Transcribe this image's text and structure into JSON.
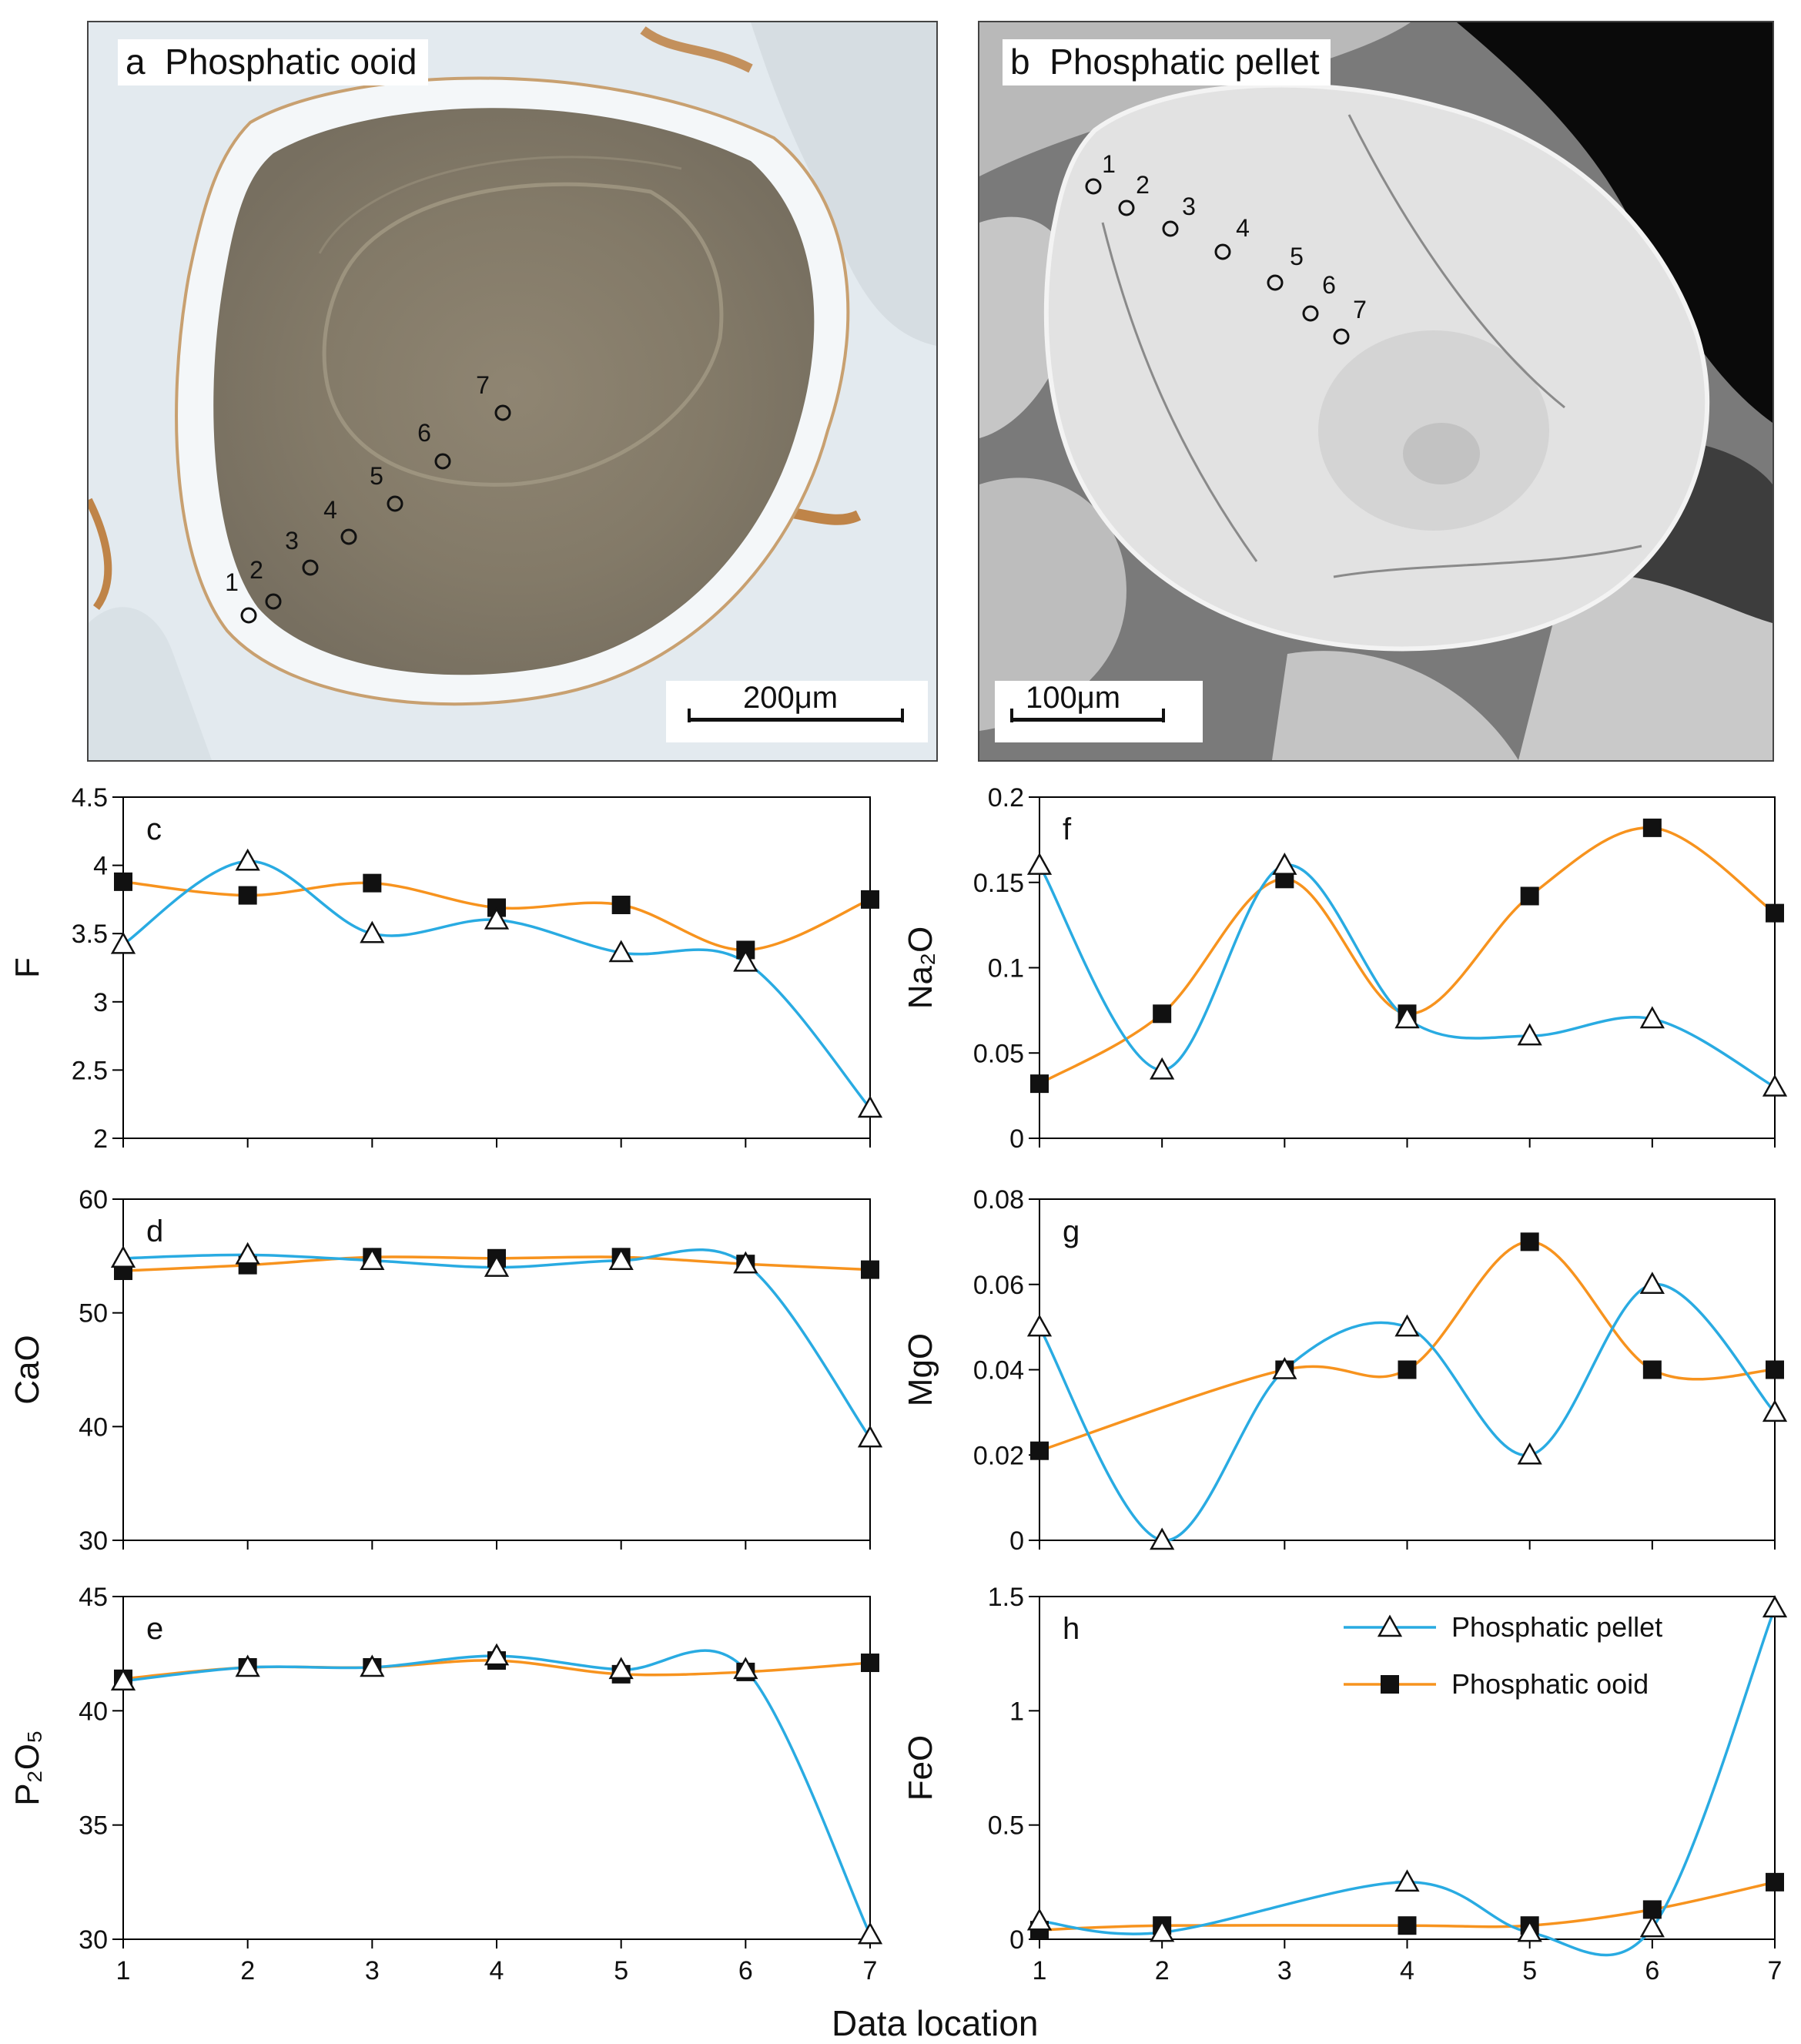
{
  "figure": {
    "panel_a": {
      "letter": "a",
      "title": "Phosphatic ooid",
      "scale_bar": "200μm",
      "spots": [
        "1",
        "2",
        "3",
        "4",
        "5",
        "6",
        "7"
      ]
    },
    "panel_b": {
      "letter": "b",
      "title": "Phosphatic pellet",
      "scale_bar": "100μm",
      "spots": [
        "1",
        "2",
        "3",
        "4",
        "5",
        "6",
        "7"
      ]
    },
    "shared_xlabel": "Data location",
    "legend": {
      "pellet": "Phosphatic pellet",
      "ooid": "Phosphatic ooid"
    },
    "colors": {
      "pellet": "#29abe2",
      "ooid": "#f7931e",
      "axis": "#000000"
    }
  },
  "chart_data": [
    {
      "panel": "c",
      "type": "line",
      "ylabel": "F",
      "x": [
        1,
        2,
        3,
        4,
        5,
        6,
        7
      ],
      "ylim": [
        2,
        4.5
      ],
      "yticks": [
        "2",
        "2.5",
        "3",
        "3.5",
        "4",
        "4.5"
      ],
      "series": [
        {
          "name": "Phosphatic pellet",
          "values": [
            3.42,
            4.03,
            3.5,
            3.6,
            3.36,
            3.29,
            2.22
          ]
        },
        {
          "name": "Phosphatic ooid",
          "values": [
            3.88,
            3.78,
            3.87,
            3.69,
            3.71,
            3.38,
            3.75
          ]
        }
      ]
    },
    {
      "panel": "f",
      "type": "line",
      "ylabel": "Na₂O",
      "x": [
        1,
        2,
        3,
        4,
        5,
        6,
        7
      ],
      "ylim": [
        0,
        0.2
      ],
      "yticks": [
        "0",
        "0.05",
        "0.1",
        "0.15",
        "0.2"
      ],
      "series": [
        {
          "name": "Phosphatic pellet",
          "values": [
            0.16,
            0.04,
            0.16,
            0.07,
            0.06,
            0.07,
            0.03
          ]
        },
        {
          "name": "Phosphatic ooid",
          "values": [
            0.032,
            0.073,
            0.152,
            0.073,
            0.142,
            0.182,
            0.132
          ]
        }
      ]
    },
    {
      "panel": "d",
      "type": "line",
      "ylabel": "CaO",
      "x": [
        1,
        2,
        3,
        4,
        5,
        6,
        7
      ],
      "ylim": [
        30,
        60
      ],
      "yticks": [
        "30",
        "40",
        "50",
        "60"
      ],
      "series": [
        {
          "name": "Phosphatic pellet",
          "values": [
            54.8,
            55.1,
            54.6,
            54.0,
            54.6,
            54.3,
            39.0
          ]
        },
        {
          "name": "Phosphatic ooid",
          "values": [
            53.7,
            54.2,
            54.9,
            54.8,
            54.9,
            54.3,
            53.8
          ]
        }
      ]
    },
    {
      "panel": "g",
      "type": "line",
      "ylabel": "MgO",
      "x": [
        1,
        2,
        3,
        4,
        5,
        6,
        7
      ],
      "ylim": [
        0,
        0.08
      ],
      "yticks": [
        "0",
        "0.02",
        "0.04",
        "0.06",
        "0.08"
      ],
      "series": [
        {
          "name": "Phosphatic pellet",
          "values": [
            0.05,
            0.0,
            0.04,
            0.05,
            0.02,
            0.06,
            0.03
          ]
        },
        {
          "name": "Phosphatic ooid",
          "values": [
            0.021,
            null,
            0.04,
            0.04,
            0.07,
            0.04,
            0.04
          ]
        }
      ]
    },
    {
      "panel": "e",
      "type": "line",
      "ylabel": "P₂O₅",
      "x": [
        1,
        2,
        3,
        4,
        5,
        6,
        7
      ],
      "ylim": [
        30,
        45
      ],
      "yticks": [
        "30",
        "35",
        "40",
        "45"
      ],
      "series": [
        {
          "name": "Phosphatic pellet",
          "values": [
            41.3,
            41.9,
            41.9,
            42.4,
            41.8,
            41.8,
            30.2
          ]
        },
        {
          "name": "Phosphatic ooid",
          "values": [
            41.4,
            41.9,
            41.9,
            42.2,
            41.6,
            41.7,
            42.1
          ]
        }
      ]
    },
    {
      "panel": "h",
      "type": "line",
      "ylabel": "FeO",
      "x": [
        1,
        2,
        3,
        4,
        5,
        6,
        7
      ],
      "ylim": [
        0,
        1.5
      ],
      "yticks": [
        "0",
        "0.5",
        "1",
        "1.5"
      ],
      "legend": "top-right",
      "series": [
        {
          "name": "Phosphatic pellet",
          "values": [
            0.08,
            0.03,
            null,
            0.25,
            0.03,
            0.05,
            1.45
          ]
        },
        {
          "name": "Phosphatic ooid",
          "values": [
            0.04,
            0.06,
            null,
            0.06,
            0.06,
            0.13,
            0.25
          ]
        }
      ]
    }
  ]
}
